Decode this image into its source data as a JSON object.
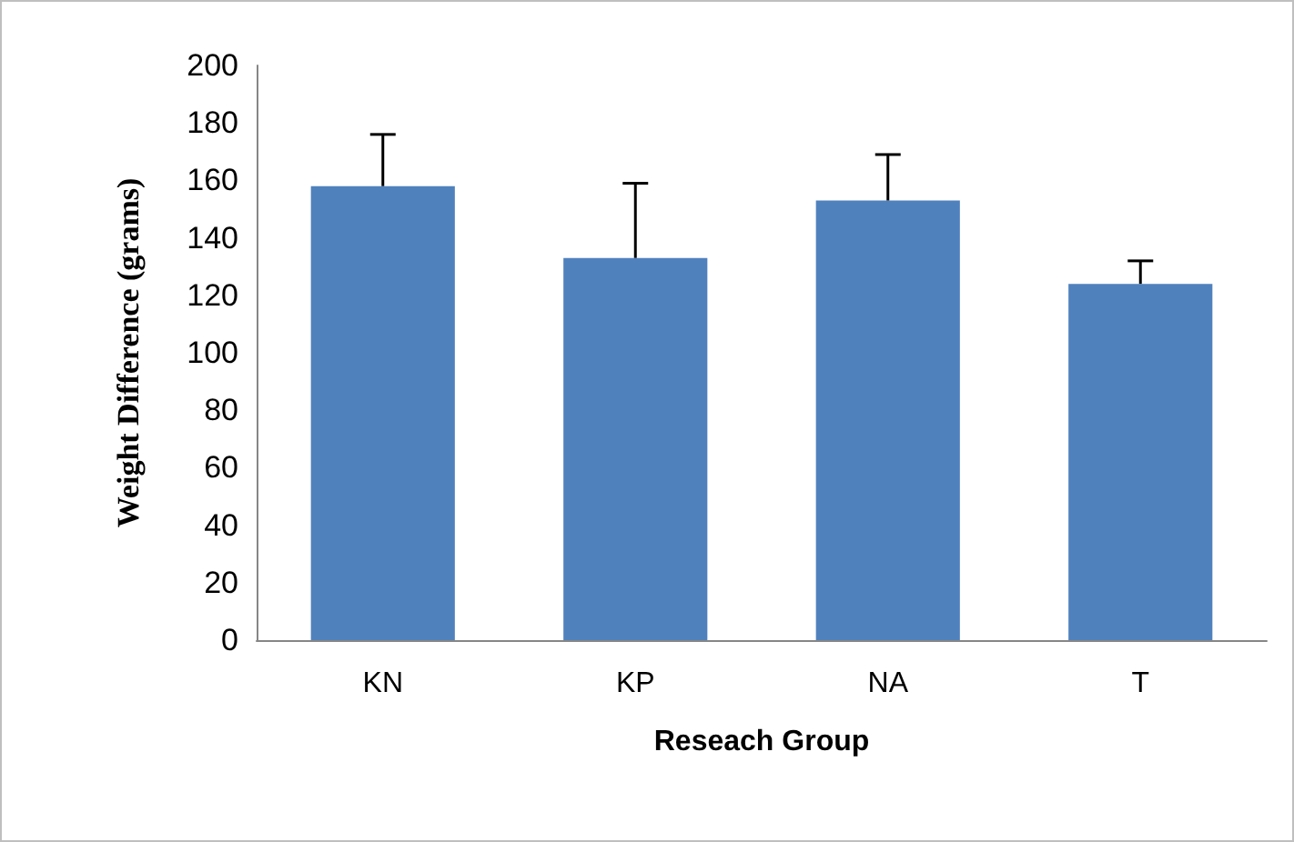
{
  "chart_data": {
    "type": "bar",
    "xlabel": "Reseach Group",
    "ylabel": "Weight Difference (grams)",
    "categories": [
      "KN",
      "KP",
      "NA",
      "T"
    ],
    "values": [
      158,
      133,
      153,
      124
    ],
    "errors": [
      [
        158,
        176
      ],
      [
        133,
        159
      ],
      [
        153,
        169
      ],
      [
        124,
        132
      ]
    ],
    "color": "#4f81bd",
    "ylim": [
      0,
      200
    ],
    "yticks": [
      0,
      20,
      40,
      60,
      80,
      100,
      120,
      140,
      160,
      180,
      200
    ],
    "grid": false
  }
}
